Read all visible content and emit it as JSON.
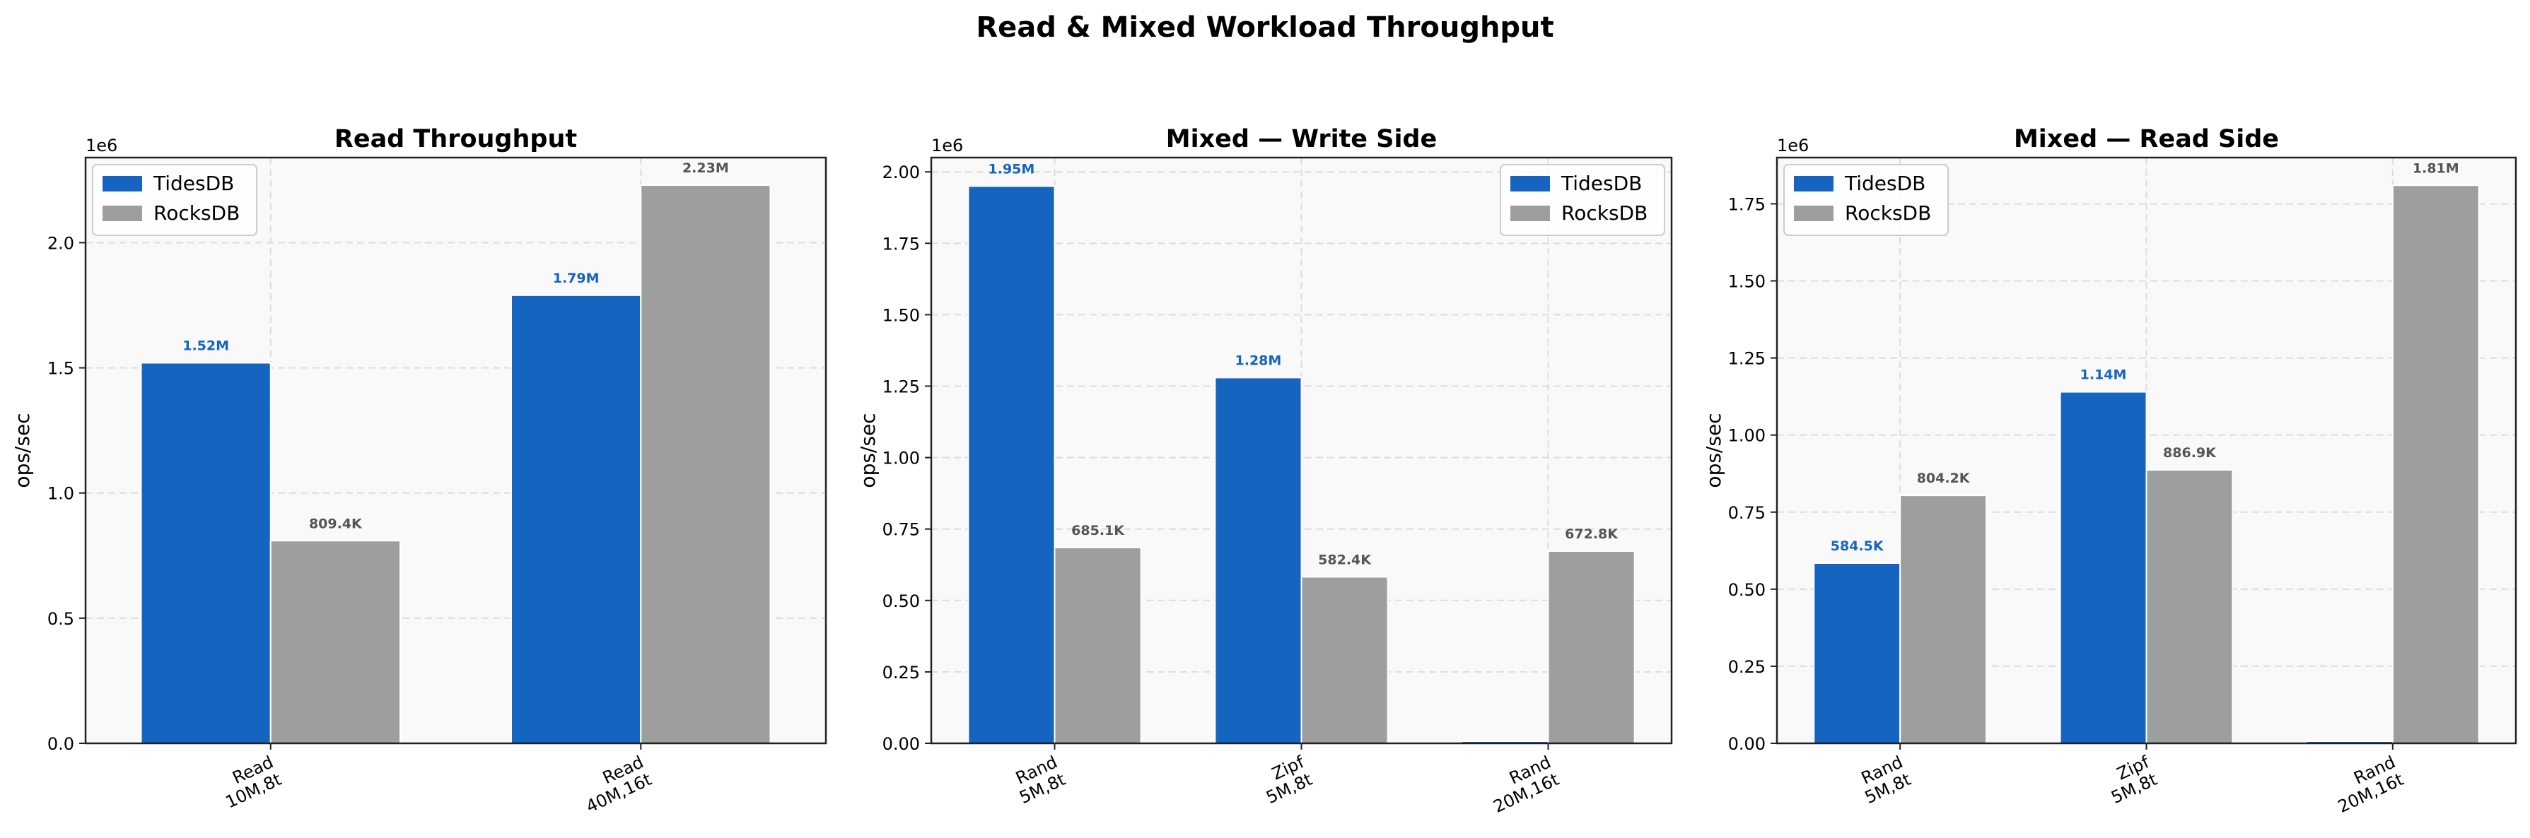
{
  "figure": {
    "suptitle": "Read & Mixed Workload Throughput"
  },
  "colors": {
    "tidesdb": "#1565c0",
    "rocksdb": "#9e9e9e",
    "axes_bg": "#f9f9f9",
    "grid": "#dddddd"
  },
  "chart_data": [
    {
      "type": "bar",
      "title": "Read Throughput",
      "ylabel": "ops/sec",
      "offset_text": "1e6",
      "ylim": [
        0,
        2340000
      ],
      "yticks": [
        0,
        500000,
        1000000,
        1500000,
        2000000
      ],
      "ytick_labels": [
        "0.0",
        "0.5",
        "1.0",
        "1.5",
        "2.0"
      ],
      "grid": true,
      "legend_placement": "upper left",
      "categories": [
        [
          "Read",
          "10M,8t"
        ],
        [
          "Read",
          "40M,16t"
        ]
      ],
      "series": [
        {
          "name": "TidesDB",
          "color": "#1565c0",
          "values": [
            1520000,
            1790000
          ],
          "labels": [
            "1.52M",
            "1.79M"
          ]
        },
        {
          "name": "RocksDB",
          "color": "#9e9e9e",
          "values": [
            809400,
            2230000
          ],
          "labels": [
            "809.4K",
            "2.23M"
          ]
        }
      ]
    },
    {
      "type": "bar",
      "title": "Mixed — Write Side",
      "ylabel": "ops/sec",
      "offset_text": "1e6",
      "ylim": [
        0,
        2050000
      ],
      "yticks": [
        0,
        250000,
        500000,
        750000,
        1000000,
        1250000,
        1500000,
        1750000,
        2000000
      ],
      "ytick_labels": [
        "0.00",
        "0.25",
        "0.50",
        "0.75",
        "1.00",
        "1.25",
        "1.50",
        "1.75",
        "2.00"
      ],
      "grid": true,
      "legend_placement": "upper right",
      "categories": [
        [
          "Rand",
          "5M,8t"
        ],
        [
          "Zipf",
          "5M,8t"
        ],
        [
          "Rand",
          "20M,16t"
        ]
      ],
      "series": [
        {
          "name": "TidesDB",
          "color": "#1565c0",
          "values": [
            1950000,
            1280000,
            0
          ],
          "labels": [
            "1.95M",
            "1.28M",
            ""
          ]
        },
        {
          "name": "RocksDB",
          "color": "#9e9e9e",
          "values": [
            685100,
            582400,
            672800
          ],
          "labels": [
            "685.1K",
            "582.4K",
            "672.8K"
          ]
        }
      ]
    },
    {
      "type": "bar",
      "title": "Mixed — Read Side",
      "ylabel": "ops/sec",
      "offset_text": "1e6",
      "ylim": [
        0,
        1900000
      ],
      "yticks": [
        0,
        250000,
        500000,
        750000,
        1000000,
        1250000,
        1500000,
        1750000
      ],
      "ytick_labels": [
        "0.00",
        "0.25",
        "0.50",
        "0.75",
        "1.00",
        "1.25",
        "1.50",
        "1.75"
      ],
      "grid": true,
      "legend_placement": "upper left",
      "categories": [
        [
          "Rand",
          "5M,8t"
        ],
        [
          "Zipf",
          "5M,8t"
        ],
        [
          "Rand",
          "20M,16t"
        ]
      ],
      "series": [
        {
          "name": "TidesDB",
          "color": "#1565c0",
          "values": [
            584500,
            1140000,
            0
          ],
          "labels": [
            "584.5K",
            "1.14M",
            ""
          ]
        },
        {
          "name": "RocksDB",
          "color": "#9e9e9e",
          "values": [
            804200,
            886900,
            1810000
          ],
          "labels": [
            "804.2K",
            "886.9K",
            "1.81M"
          ]
        }
      ]
    }
  ]
}
